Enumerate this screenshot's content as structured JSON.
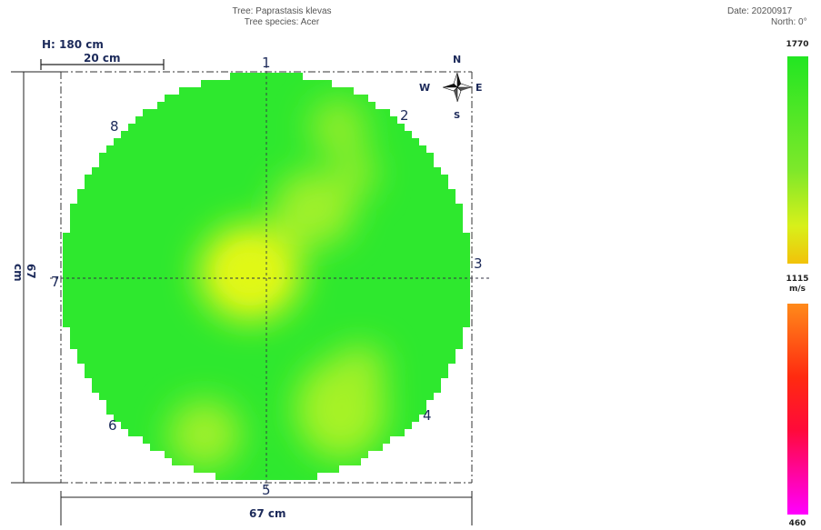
{
  "header": {
    "tree_label": "Tree: Paprastasis klevas",
    "species_label": "Tree species: Acer",
    "date_label": "Date: 20200917",
    "north_label": "North: 0°"
  },
  "measurements": {
    "height": "H: 180 cm",
    "scale_bar": "20 cm",
    "width": "67 cm",
    "depth": "67 cm"
  },
  "compass": {
    "n": "N",
    "s": "S",
    "e": "E",
    "w": "W"
  },
  "sensor_points": [
    "1",
    "2",
    "3",
    "4",
    "5",
    "6",
    "7",
    "8"
  ],
  "color_scale": {
    "max": "1770",
    "mid": "1115",
    "unit": "m/s",
    "min": "460",
    "high_color": "#22e622",
    "mid_color": "#f2f200",
    "low_color": "#ff00ff"
  },
  "colors": {
    "sound_wood": "#2ee82e",
    "lighter_zone": "#9ef02a",
    "center_zone": "#d6f51c",
    "label_color": "#1c2a5a"
  }
}
